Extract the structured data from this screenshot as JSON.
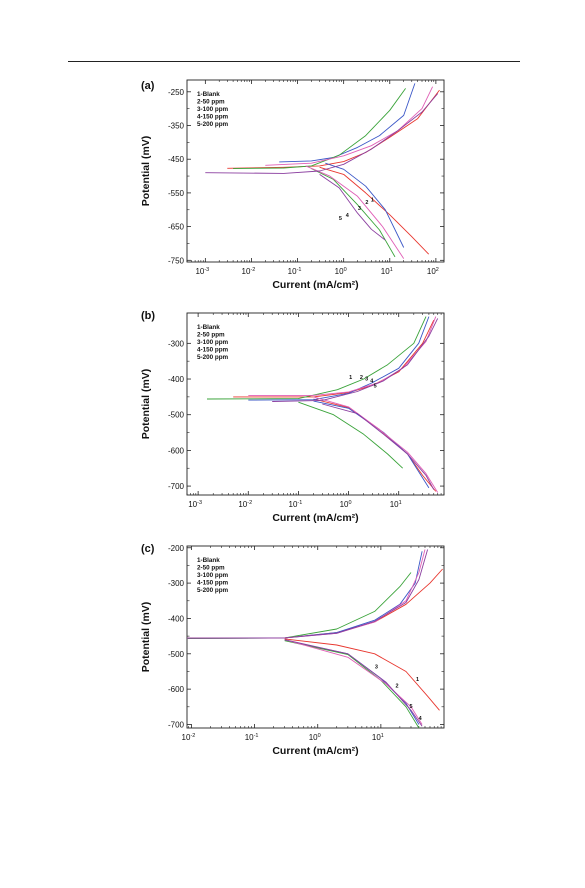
{
  "chart_data": [
    {
      "type": "line",
      "panel_label": "(a)",
      "xlabel": "Current (mA/cm²)",
      "ylabel": "Potential (mV)",
      "x_scale": "log",
      "xlim": [
        0.0004,
        150
      ],
      "ylim": [
        -755,
        -215
      ],
      "x_ticks": [
        0.001,
        0.01,
        0.1,
        1,
        10,
        100
      ],
      "x_tick_labels": [
        [
          "10",
          "-3"
        ],
        [
          "10",
          "-2"
        ],
        [
          "10",
          "-1"
        ],
        [
          "10",
          "0"
        ],
        [
          "10",
          "1"
        ],
        [
          "10",
          "2"
        ]
      ],
      "y_ticks": [
        -250,
        -350,
        -450,
        -550,
        -650,
        -750
      ],
      "y_tick_labels": [
        "-250",
        "-350",
        "-450",
        "-550",
        "-650",
        "-750"
      ],
      "legend": [
        "1-Blank",
        "2-50 ppm",
        "3-100 ppm",
        "4-150 ppm",
        "5-200 ppm"
      ],
      "legend_position": "top-left",
      "series": [
        {
          "color": "#e8372f",
          "points": [
            [
              0.003,
              -477
            ],
            [
              0.05,
              -474
            ],
            [
              0.3,
              -470
            ],
            [
              1,
              -457
            ],
            [
              3,
              -430
            ],
            [
              10,
              -385
            ],
            [
              40,
              -330
            ],
            [
              120,
              -245
            ]
          ],
          "points2": [
            [
              0.3,
              -474
            ],
            [
              1,
              -495
            ],
            [
              3,
              -550
            ],
            [
              10,
              -615
            ],
            [
              30,
              -680
            ],
            [
              70,
              -732
            ]
          ]
        },
        {
          "color": "#3b57c7",
          "points": [
            [
              0.04,
              -458
            ],
            [
              0.2,
              -455
            ],
            [
              0.6,
              -445
            ],
            [
              2,
              -415
            ],
            [
              6,
              -380
            ],
            [
              20,
              -320
            ],
            [
              35,
              -225
            ]
          ],
          "points2": [
            [
              0.4,
              -462
            ],
            [
              1,
              -480
            ],
            [
              3,
              -530
            ],
            [
              8,
              -600
            ],
            [
              20,
              -712
            ]
          ]
        },
        {
          "color": "#3aa33a",
          "points": [
            [
              0.004,
              -478
            ],
            [
              0.05,
              -476
            ],
            [
              0.2,
              -470
            ],
            [
              0.8,
              -438
            ],
            [
              3,
              -380
            ],
            [
              10,
              -305
            ],
            [
              22,
              -240
            ]
          ],
          "points2": [
            [
              0.2,
              -478
            ],
            [
              0.6,
              -510
            ],
            [
              2,
              -585
            ],
            [
              6,
              -660
            ],
            [
              13,
              -740
            ]
          ]
        },
        {
          "color": "#e05fb6",
          "points": [
            [
              0.02,
              -468
            ],
            [
              0.2,
              -462
            ],
            [
              1,
              -440
            ],
            [
              4,
              -410
            ],
            [
              15,
              -365
            ],
            [
              50,
              -300
            ],
            [
              85,
              -235
            ]
          ],
          "points2": [
            [
              0.15,
              -470
            ],
            [
              0.5,
              -500
            ],
            [
              2,
              -560
            ],
            [
              7,
              -650
            ],
            [
              20,
              -745
            ]
          ]
        },
        {
          "color": "#8b3fa0",
          "points": [
            [
              0.001,
              -490
            ],
            [
              0.05,
              -492
            ],
            [
              0.3,
              -485
            ],
            [
              1,
              -465
            ],
            [
              4,
              -420
            ],
            [
              15,
              -365
            ],
            [
              50,
              -310
            ],
            [
              110,
              -255
            ]
          ],
          "points2": [
            [
              0.3,
              -495
            ],
            [
              0.8,
              -535
            ],
            [
              2,
              -610
            ],
            [
              4,
              -658
            ],
            [
              8,
              -690
            ]
          ]
        }
      ],
      "curve_labels": [
        {
          "text": "1",
          "x": 4.2,
          "y": -576
        },
        {
          "text": "2",
          "x": 3.2,
          "y": -583
        },
        {
          "text": "3",
          "x": 2.2,
          "y": -600
        },
        {
          "text": "4",
          "x": 1.2,
          "y": -622
        },
        {
          "text": "5",
          "x": 0.85,
          "y": -630
        }
      ]
    },
    {
      "type": "line",
      "panel_label": "(b)",
      "xlabel": "Current (mA/cm²)",
      "ylabel": "Potential (mV)",
      "x_scale": "log",
      "xlim": [
        0.0006,
        80
      ],
      "ylim": [
        -725,
        -215
      ],
      "x_ticks": [
        0.001,
        0.01,
        0.1,
        1,
        10
      ],
      "x_tick_labels": [
        [
          "10",
          "-3"
        ],
        [
          "10",
          "-2"
        ],
        [
          "10",
          "-1"
        ],
        [
          "10",
          "0"
        ],
        [
          "10",
          "1"
        ]
      ],
      "y_ticks": [
        -300,
        -400,
        -500,
        -600,
        -700
      ],
      "y_tick_labels": [
        "-300",
        "-400",
        "-500",
        "-600",
        "-700"
      ],
      "legend": [
        "1-Blank",
        "2-50 ppm",
        "3-100 ppm",
        "4-150 ppm",
        "5-200 ppm"
      ],
      "legend_position": "top-left",
      "series": [
        {
          "color": "#e8372f",
          "points": [
            [
              0.005,
              -450
            ],
            [
              0.2,
              -450
            ],
            [
              1,
              -438
            ],
            [
              3,
              -418
            ],
            [
              10,
              -380
            ],
            [
              30,
              -300
            ],
            [
              50,
              -235
            ]
          ],
          "points2": [
            [
              0.2,
              -456
            ],
            [
              1,
              -480
            ],
            [
              4,
              -540
            ],
            [
              15,
              -610
            ],
            [
              30,
              -670
            ],
            [
              55,
              -715
            ]
          ]
        },
        {
          "color": "#3b57c7",
          "points": [
            [
              0.01,
              -459
            ],
            [
              0.2,
              -458
            ],
            [
              1,
              -440
            ],
            [
              3,
              -410
            ],
            [
              10,
              -370
            ],
            [
              25,
              -300
            ],
            [
              40,
              -225
            ]
          ],
          "points2": [
            [
              0.2,
              -462
            ],
            [
              1,
              -482
            ],
            [
              5,
              -550
            ],
            [
              15,
              -610
            ],
            [
              40,
              -705
            ]
          ]
        },
        {
          "color": "#3aa33a",
          "points": [
            [
              0.0015,
              -456
            ],
            [
              0.1,
              -455
            ],
            [
              0.6,
              -430
            ],
            [
              2,
              -400
            ],
            [
              6,
              -360
            ],
            [
              20,
              -300
            ],
            [
              35,
              -225
            ]
          ],
          "points2": [
            [
              0.1,
              -465
            ],
            [
              0.5,
              -500
            ],
            [
              2,
              -555
            ],
            [
              6,
              -610
            ],
            [
              12,
              -650
            ]
          ]
        },
        {
          "color": "#e05fb6",
          "points": [
            [
              0.01,
              -446
            ],
            [
              0.2,
              -446
            ],
            [
              1,
              -436
            ],
            [
              4,
              -410
            ],
            [
              12,
              -370
            ],
            [
              35,
              -295
            ],
            [
              55,
              -225
            ]
          ],
          "points2": [
            [
              0.2,
              -450
            ],
            [
              1,
              -478
            ],
            [
              4,
              -540
            ],
            [
              15,
              -605
            ],
            [
              35,
              -665
            ],
            [
              60,
              -718
            ]
          ]
        },
        {
          "color": "#8b3fa0",
          "points": [
            [
              0.03,
              -463
            ],
            [
              0.3,
              -460
            ],
            [
              1.5,
              -435
            ],
            [
              5,
              -405
            ],
            [
              15,
              -360
            ],
            [
              40,
              -280
            ],
            [
              60,
              -230
            ]
          ],
          "points2": [
            [
              0.3,
              -470
            ],
            [
              1.5,
              -497
            ],
            [
              5,
              -555
            ],
            [
              15,
              -610
            ],
            [
              35,
              -670
            ],
            [
              50,
              -710
            ]
          ]
        }
      ],
      "curve_labels": [
        {
          "text": "1",
          "x": 1.1,
          "y": -400
        },
        {
          "text": "2",
          "x": 1.8,
          "y": -400
        },
        {
          "text": "3",
          "x": 2.3,
          "y": -404
        },
        {
          "text": "4",
          "x": 2.9,
          "y": -410
        },
        {
          "text": "5",
          "x": 3.4,
          "y": -424
        }
      ]
    },
    {
      "type": "line",
      "panel_label": "(c)",
      "xlabel": "Current (mA/cm²)",
      "ylabel": "Potential (mV)",
      "x_scale": "log",
      "xlim": [
        0.0085,
        100
      ],
      "ylim": [
        -710,
        -195
      ],
      "x_ticks": [
        0.01,
        0.1,
        1,
        10
      ],
      "x_tick_labels": [
        [
          "10",
          "-2"
        ],
        [
          "10",
          "-1"
        ],
        [
          "10",
          "0"
        ],
        [
          "10",
          "1"
        ]
      ],
      "y_ticks": [
        -200,
        -300,
        -400,
        -500,
        -600,
        -700
      ],
      "y_tick_labels": [
        "-200",
        "-300",
        "-400",
        "-500",
        "-600",
        "-700"
      ],
      "legend": [
        "1-Blank",
        "2-50 ppm",
        "3-100 ppm",
        "4-150 ppm",
        "5-200 ppm"
      ],
      "legend_position": "top-left",
      "series": [
        {
          "color": "#e8372f",
          "points": [
            [
              0.0085,
              -455
            ],
            [
              0.3,
              -455
            ],
            [
              2,
              -440
            ],
            [
              8,
              -410
            ],
            [
              25,
              -360
            ],
            [
              60,
              -300
            ],
            [
              95,
              -260
            ]
          ],
          "points2": [
            [
              0.3,
              -458
            ],
            [
              2,
              -475
            ],
            [
              8,
              -500
            ],
            [
              25,
              -550
            ],
            [
              55,
              -620
            ],
            [
              85,
              -660
            ]
          ]
        },
        {
          "color": "#3b57c7",
          "points": [
            [
              0.0085,
              -456
            ],
            [
              0.3,
              -455
            ],
            [
              2,
              -440
            ],
            [
              8,
              -405
            ],
            [
              20,
              -360
            ],
            [
              35,
              -300
            ],
            [
              45,
              -210
            ]
          ],
          "points2": [
            [
              0.3,
              -462
            ],
            [
              3,
              -500
            ],
            [
              10,
              -570
            ],
            [
              25,
              -640
            ],
            [
              40,
              -700
            ]
          ]
        },
        {
          "color": "#3aa33a",
          "points": [
            [
              0.0085,
              -457
            ],
            [
              0.3,
              -455
            ],
            [
              2,
              -430
            ],
            [
              8,
              -380
            ],
            [
              20,
              -310
            ],
            [
              30,
              -270
            ]
          ],
          "points2": [
            [
              0.3,
              -463
            ],
            [
              3,
              -502
            ],
            [
              10,
              -575
            ],
            [
              25,
              -650
            ],
            [
              40,
              -710
            ]
          ]
        },
        {
          "color": "#e05fb6",
          "points": [
            [
              0.0085,
              -456
            ],
            [
              0.3,
              -455
            ],
            [
              2,
              -442
            ],
            [
              8,
              -410
            ],
            [
              25,
              -350
            ],
            [
              40,
              -270
            ],
            [
              50,
              -205
            ]
          ],
          "points2": [
            [
              0.3,
              -460
            ],
            [
              3,
              -510
            ],
            [
              12,
              -585
            ],
            [
              30,
              -650
            ],
            [
              45,
              -700
            ]
          ]
        },
        {
          "color": "#8b3fa0",
          "points": [
            [
              0.0085,
              -456
            ],
            [
              0.3,
              -455
            ],
            [
              2,
              -442
            ],
            [
              8,
              -408
            ],
            [
              25,
              -355
            ],
            [
              40,
              -290
            ],
            [
              55,
              -205
            ]
          ],
          "points2": [
            [
              0.3,
              -460
            ],
            [
              3,
              -500
            ],
            [
              12,
              -580
            ],
            [
              30,
              -660
            ],
            [
              45,
              -705
            ]
          ]
        }
      ],
      "curve_labels": [
        {
          "text": "1",
          "x": 38,
          "y": -577
        },
        {
          "text": "2",
          "x": 18,
          "y": -595
        },
        {
          "text": "3",
          "x": 8.5,
          "y": -542
        },
        {
          "text": "4",
          "x": 42,
          "y": -688
        },
        {
          "text": "5",
          "x": 30,
          "y": -654
        }
      ]
    }
  ]
}
